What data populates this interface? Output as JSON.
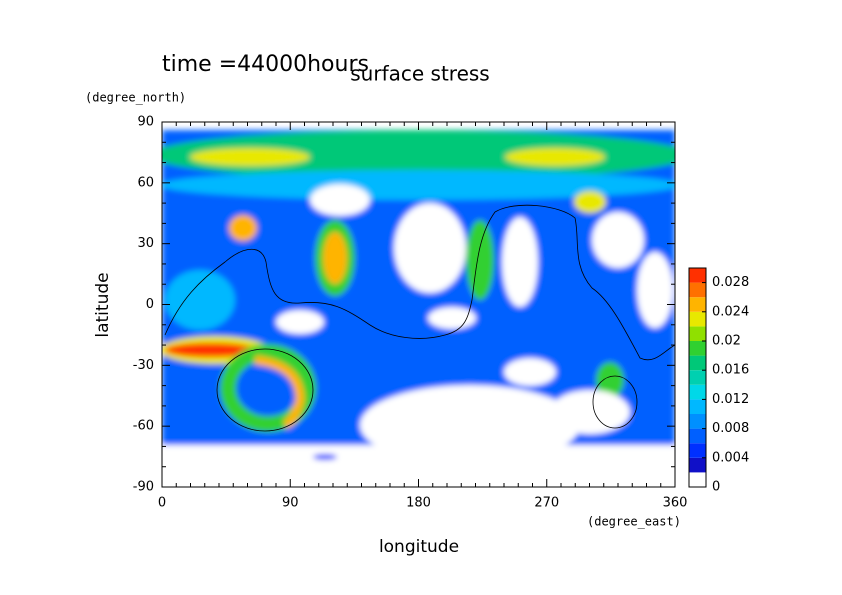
{
  "chart_data": {
    "type": "contour",
    "title": "surface stress",
    "annotation": "time =44000hours",
    "x_label": "longitude",
    "y_label": "latitude",
    "x_unit": "(degree_east)",
    "y_unit": "(degree_north)",
    "xlim": [
      0,
      360
    ],
    "xticks": [
      0,
      90,
      180,
      270,
      360
    ],
    "ylim": [
      -90,
      90
    ],
    "yticks": [
      -90,
      -60,
      -30,
      0,
      30,
      60,
      90
    ],
    "colorbar": {
      "levels": [
        0,
        0.002,
        0.004,
        0.006,
        0.008,
        0.01,
        0.012,
        0.014,
        0.016,
        0.018,
        0.02,
        0.022,
        0.024,
        0.026,
        0.028,
        0.03
      ],
      "colors": [
        "#ffffff",
        "#1010c8",
        "#0030ff",
        "#0060ff",
        "#0090ff",
        "#00b8ff",
        "#00d8e8",
        "#00d0b0",
        "#00c878",
        "#30d030",
        "#90e000",
        "#e8e800",
        "#ffb400",
        "#ff7000",
        "#ff3000"
      ],
      "ticks": [
        0,
        0.004,
        0.008,
        0.012,
        0.016,
        0.02,
        0.024,
        0.028
      ]
    }
  }
}
